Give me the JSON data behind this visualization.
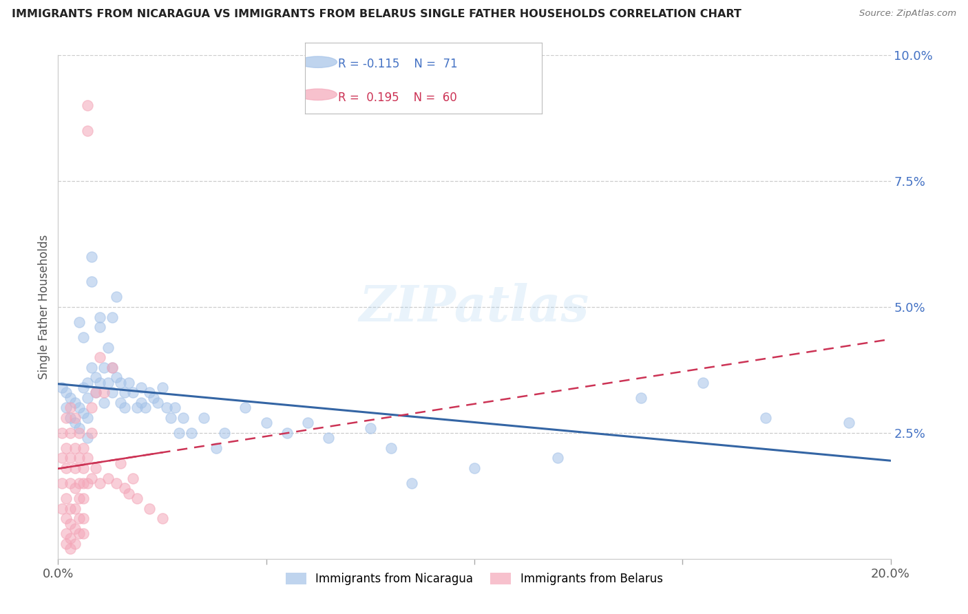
{
  "title": "IMMIGRANTS FROM NICARAGUA VS IMMIGRANTS FROM BELARUS SINGLE FATHER HOUSEHOLDS CORRELATION CHART",
  "source": "Source: ZipAtlas.com",
  "ylabel": "Single Father Households",
  "xlim": [
    0.0,
    0.2
  ],
  "ylim": [
    0.0,
    0.1
  ],
  "series1_label": "Immigrants from Nicaragua",
  "series1_color": "#a4c2e8",
  "series1_line_color": "#3465a4",
  "series1_R": -0.115,
  "series1_N": 71,
  "series2_label": "Immigrants from Belarus",
  "series2_color": "#f4a7b9",
  "series2_line_color": "#cc3355",
  "series2_R": 0.195,
  "series2_N": 60,
  "watermark": "ZIPatlas",
  "scatter_nicaragua": [
    [
      0.001,
      0.034
    ],
    [
      0.002,
      0.033
    ],
    [
      0.002,
      0.03
    ],
    [
      0.003,
      0.032
    ],
    [
      0.003,
      0.028
    ],
    [
      0.004,
      0.031
    ],
    [
      0.004,
      0.027
    ],
    [
      0.005,
      0.047
    ],
    [
      0.005,
      0.03
    ],
    [
      0.005,
      0.026
    ],
    [
      0.006,
      0.044
    ],
    [
      0.006,
      0.034
    ],
    [
      0.006,
      0.029
    ],
    [
      0.007,
      0.035
    ],
    [
      0.007,
      0.032
    ],
    [
      0.007,
      0.028
    ],
    [
      0.007,
      0.024
    ],
    [
      0.008,
      0.06
    ],
    [
      0.008,
      0.055
    ],
    [
      0.008,
      0.038
    ],
    [
      0.009,
      0.036
    ],
    [
      0.009,
      0.033
    ],
    [
      0.01,
      0.048
    ],
    [
      0.01,
      0.046
    ],
    [
      0.01,
      0.035
    ],
    [
      0.011,
      0.038
    ],
    [
      0.011,
      0.031
    ],
    [
      0.012,
      0.042
    ],
    [
      0.012,
      0.035
    ],
    [
      0.013,
      0.048
    ],
    [
      0.013,
      0.038
    ],
    [
      0.013,
      0.033
    ],
    [
      0.014,
      0.052
    ],
    [
      0.014,
      0.036
    ],
    [
      0.015,
      0.035
    ],
    [
      0.015,
      0.031
    ],
    [
      0.016,
      0.033
    ],
    [
      0.016,
      0.03
    ],
    [
      0.017,
      0.035
    ],
    [
      0.018,
      0.033
    ],
    [
      0.019,
      0.03
    ],
    [
      0.02,
      0.034
    ],
    [
      0.02,
      0.031
    ],
    [
      0.021,
      0.03
    ],
    [
      0.022,
      0.033
    ],
    [
      0.023,
      0.032
    ],
    [
      0.024,
      0.031
    ],
    [
      0.025,
      0.034
    ],
    [
      0.026,
      0.03
    ],
    [
      0.027,
      0.028
    ],
    [
      0.028,
      0.03
    ],
    [
      0.029,
      0.025
    ],
    [
      0.03,
      0.028
    ],
    [
      0.032,
      0.025
    ],
    [
      0.035,
      0.028
    ],
    [
      0.038,
      0.022
    ],
    [
      0.04,
      0.025
    ],
    [
      0.045,
      0.03
    ],
    [
      0.05,
      0.027
    ],
    [
      0.055,
      0.025
    ],
    [
      0.06,
      0.027
    ],
    [
      0.065,
      0.024
    ],
    [
      0.075,
      0.026
    ],
    [
      0.08,
      0.022
    ],
    [
      0.085,
      0.015
    ],
    [
      0.1,
      0.018
    ],
    [
      0.12,
      0.02
    ],
    [
      0.14,
      0.032
    ],
    [
      0.155,
      0.035
    ],
    [
      0.17,
      0.028
    ],
    [
      0.19,
      0.027
    ]
  ],
  "scatter_belarus": [
    [
      0.001,
      0.01
    ],
    [
      0.001,
      0.015
    ],
    [
      0.001,
      0.02
    ],
    [
      0.001,
      0.025
    ],
    [
      0.002,
      0.012
    ],
    [
      0.002,
      0.018
    ],
    [
      0.002,
      0.022
    ],
    [
      0.002,
      0.028
    ],
    [
      0.002,
      0.008
    ],
    [
      0.002,
      0.005
    ],
    [
      0.002,
      0.003
    ],
    [
      0.003,
      0.03
    ],
    [
      0.003,
      0.025
    ],
    [
      0.003,
      0.02
    ],
    [
      0.003,
      0.015
    ],
    [
      0.003,
      0.01
    ],
    [
      0.003,
      0.007
    ],
    [
      0.003,
      0.004
    ],
    [
      0.003,
      0.002
    ],
    [
      0.004,
      0.028
    ],
    [
      0.004,
      0.022
    ],
    [
      0.004,
      0.018
    ],
    [
      0.004,
      0.014
    ],
    [
      0.004,
      0.01
    ],
    [
      0.004,
      0.006
    ],
    [
      0.004,
      0.003
    ],
    [
      0.005,
      0.025
    ],
    [
      0.005,
      0.02
    ],
    [
      0.005,
      0.015
    ],
    [
      0.005,
      0.012
    ],
    [
      0.005,
      0.008
    ],
    [
      0.005,
      0.005
    ],
    [
      0.006,
      0.022
    ],
    [
      0.006,
      0.018
    ],
    [
      0.006,
      0.015
    ],
    [
      0.006,
      0.012
    ],
    [
      0.006,
      0.008
    ],
    [
      0.006,
      0.005
    ],
    [
      0.007,
      0.09
    ],
    [
      0.007,
      0.085
    ],
    [
      0.007,
      0.02
    ],
    [
      0.007,
      0.015
    ],
    [
      0.008,
      0.03
    ],
    [
      0.008,
      0.025
    ],
    [
      0.008,
      0.016
    ],
    [
      0.009,
      0.033
    ],
    [
      0.009,
      0.018
    ],
    [
      0.01,
      0.04
    ],
    [
      0.01,
      0.015
    ],
    [
      0.011,
      0.033
    ],
    [
      0.012,
      0.016
    ],
    [
      0.013,
      0.038
    ],
    [
      0.014,
      0.015
    ],
    [
      0.015,
      0.019
    ],
    [
      0.016,
      0.014
    ],
    [
      0.017,
      0.013
    ],
    [
      0.018,
      0.016
    ],
    [
      0.019,
      0.012
    ],
    [
      0.022,
      0.01
    ],
    [
      0.025,
      0.008
    ]
  ]
}
